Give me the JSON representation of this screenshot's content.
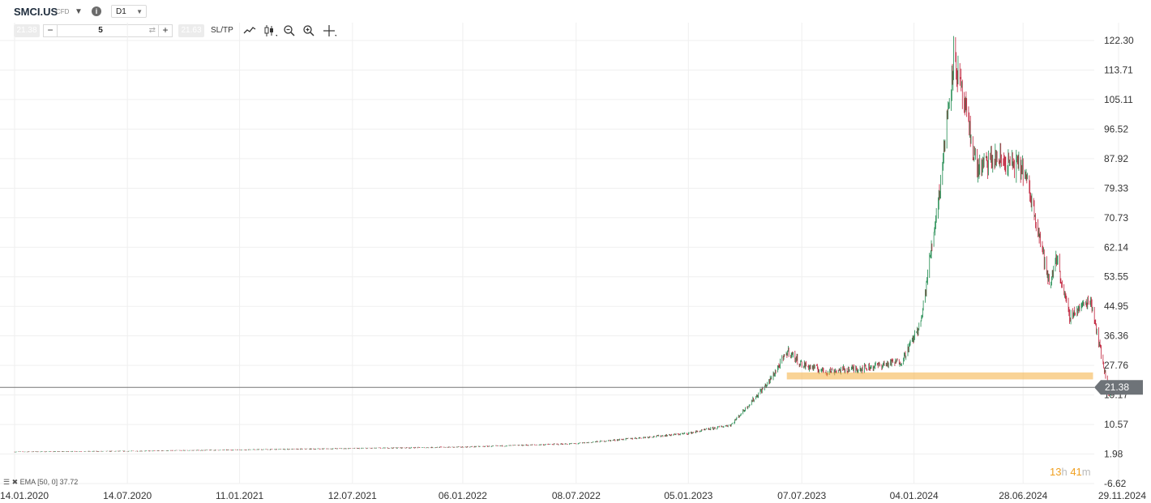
{
  "header": {
    "symbol": "SMCI.US",
    "instrument_type": "CFD",
    "timeframe": "D1",
    "sell_price": "21.38",
    "volume": "5",
    "buy_price": "21.63",
    "sltp_label": "SL/TP"
  },
  "icons": [
    "chevron-down-icon",
    "info-icon",
    "swap-icon",
    "line-chart-icon",
    "candles-icon",
    "zoom-out-icon",
    "zoom-in-icon",
    "crosshair-icon"
  ],
  "indicator_legend": "EMA [50, 0] 37.72",
  "timer": {
    "hours": "13",
    "hours_unit": "h",
    "minutes": "41",
    "minutes_unit": "m"
  },
  "colors": {
    "up": "#1e8a4e",
    "down": "#c0203a",
    "support_zone": "#f5b042",
    "price_label_bg": "#6e7378",
    "timer": "#f0a020",
    "grid": "#efefef"
  },
  "chart_data": {
    "type": "candlestick",
    "title": "",
    "xlabel": "",
    "ylabel": "",
    "x_tick_labels": [
      "14.01.2020",
      "14.07.2020",
      "11.01.2021",
      "12.07.2021",
      "06.01.2022",
      "08.07.2022",
      "05.01.2023",
      "07.07.2023",
      "04.01.2024",
      "28.06.2024",
      "29.11.2024"
    ],
    "y_tick_labels": [
      "122.30",
      "113.71",
      "105.11",
      "96.52",
      "87.92",
      "79.33",
      "70.73",
      "62.14",
      "53.55",
      "44.95",
      "36.36",
      "27.76",
      "19.17",
      "10.57",
      "1.98",
      "-6.62"
    ],
    "ylim": [
      -6.62,
      122.3
    ],
    "current_price": 21.38,
    "current_price_label": "21.38",
    "support_zone": {
      "from": "07.07.2023",
      "to": "29.11.2024",
      "low": 23.8,
      "high": 25.6
    },
    "grid": true,
    "approx_close_series": [
      {
        "date": "14.01.2020",
        "close": 2.6
      },
      {
        "date": "14.07.2020",
        "close": 2.8
      },
      {
        "date": "11.01.2021",
        "close": 3.2
      },
      {
        "date": "12.07.2021",
        "close": 3.6
      },
      {
        "date": "06.01.2022",
        "close": 4.0
      },
      {
        "date": "08.07.2022",
        "close": 5.0
      },
      {
        "date": "05.01.2023",
        "close": 8.0
      },
      {
        "date": "15.03.2023",
        "close": 10.5
      },
      {
        "date": "15.05.2023",
        "close": 23.0
      },
      {
        "date": "15.06.2023",
        "close": 32.0
      },
      {
        "date": "07.07.2023",
        "close": 28.0
      },
      {
        "date": "15.08.2023",
        "close": 26.0
      },
      {
        "date": "15.10.2023",
        "close": 27.0
      },
      {
        "date": "15.12.2023",
        "close": 29.0
      },
      {
        "date": "15.01.2024",
        "close": 40.0
      },
      {
        "date": "15.02.2024",
        "close": 80.0
      },
      {
        "date": "08.03.2024",
        "close": 118.0
      },
      {
        "date": "15.04.2024",
        "close": 85.0
      },
      {
        "date": "15.05.2024",
        "close": 88.0
      },
      {
        "date": "28.06.2024",
        "close": 85.0
      },
      {
        "date": "20.07.2024",
        "close": 70.0
      },
      {
        "date": "10.08.2024",
        "close": 50.0
      },
      {
        "date": "20.08.2024",
        "close": 60.0
      },
      {
        "date": "10.09.2024",
        "close": 42.0
      },
      {
        "date": "15.10.2024",
        "close": 47.0
      },
      {
        "date": "30.10.2024",
        "close": 33.0
      },
      {
        "date": "14.11.2024",
        "close": 19.0
      },
      {
        "date": "18.11.2024",
        "close": 21.38
      }
    ]
  }
}
